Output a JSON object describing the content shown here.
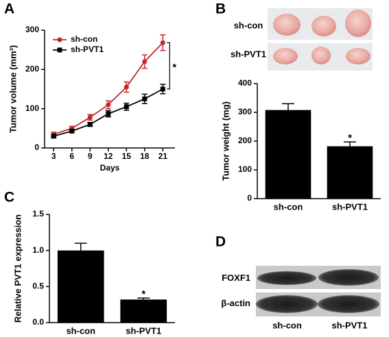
{
  "chart_data": [
    {
      "panel": "A",
      "type": "line",
      "x_label": "Days",
      "y_label": "Tumor volume (mm³)",
      "x": [
        3,
        6,
        9,
        12,
        15,
        18,
        21
      ],
      "xlim": [
        1.5,
        23
      ],
      "xticks": [
        3,
        6,
        9,
        12,
        15,
        18,
        21
      ],
      "ylim": [
        0,
        300
      ],
      "yticks": [
        0,
        100,
        200,
        300
      ],
      "legend": "upper left",
      "annotation": "*",
      "series": [
        {
          "name": "sh-con",
          "color": "#c1272d",
          "marker": "circle",
          "values": [
            35,
            50,
            78,
            110,
            155,
            220,
            268
          ],
          "errors": [
            5,
            5,
            7,
            10,
            13,
            17,
            20
          ]
        },
        {
          "name": "sh-PVT1",
          "color": "#000000",
          "marker": "square",
          "values": [
            30,
            43,
            60,
            87,
            105,
            125,
            150
          ],
          "errors": [
            4,
            4,
            5,
            8,
            9,
            12,
            12
          ]
        }
      ]
    },
    {
      "panel": "B",
      "type": "bar",
      "image_rows": [
        "sh-con",
        "sh-PVT1"
      ],
      "y_label": "Tumor weight (mg)",
      "categories": [
        "sh-con",
        "sh-PVT1"
      ],
      "values": [
        308,
        182
      ],
      "errors": [
        22,
        15
      ],
      "color": "#000000",
      "ylim": [
        0,
        400
      ],
      "yticks": [
        0,
        100,
        200,
        300,
        400
      ],
      "annotation": "*"
    },
    {
      "panel": "C",
      "type": "bar",
      "y_label": "Relative PVT1 expression",
      "categories": [
        "sh-con",
        "sh-PVT1"
      ],
      "values": [
        1.0,
        0.32
      ],
      "errors": [
        0.1,
        0.02
      ],
      "color": "#000000",
      "ylim": [
        0,
        1.5
      ],
      "yticks": [
        {
          "value": 0,
          "label": "0.0"
        },
        0.5,
        {
          "value": 1,
          "label": "1.0"
        },
        1.5
      ],
      "annotation": "*"
    },
    {
      "panel": "D",
      "type": "blot",
      "rows": [
        "FOXF1",
        "β-actin"
      ],
      "columns": [
        "sh-con",
        "sh-PVT1"
      ]
    }
  ]
}
